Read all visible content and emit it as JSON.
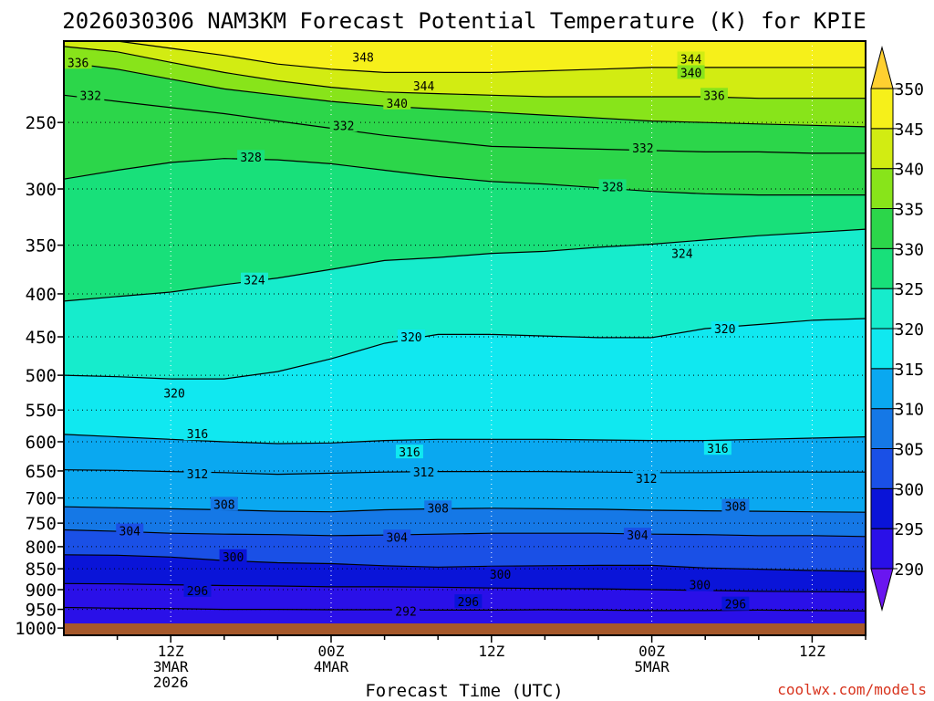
{
  "chart_data": {
    "type": "heatmap",
    "subtype": "filled time-height cross-section with contour lines",
    "title": "2026030306 NAM3KM Forecast Potential Temperature (K) for KPIE",
    "xlabel": "Forecast Time (UTC)",
    "ylabel": "",
    "credit": "coolwx.com/models",
    "units": "K",
    "x_range_hours": [
      0,
      45
    ],
    "x_ticks": [
      {
        "hour": 6,
        "label": "12Z",
        "label2": "3MAR",
        "label3": "2026"
      },
      {
        "hour": 15,
        "label": "00Z",
        "label2": "4MAR",
        "label3": ""
      },
      {
        "hour": 24,
        "label": "12Z",
        "label2": "",
        "label3": ""
      },
      {
        "hour": 33,
        "label": "00Z",
        "label2": "5MAR",
        "label3": ""
      },
      {
        "hour": 42,
        "label": "12Z",
        "label2": "",
        "label3": ""
      }
    ],
    "y_axis": {
      "scale": "log-pressure",
      "units": "hPa",
      "range": [
        1020,
        200
      ],
      "ticks": [
        1000,
        950,
        900,
        850,
        800,
        750,
        700,
        650,
        600,
        550,
        500,
        450,
        400,
        350,
        300,
        250
      ]
    },
    "colorbar": {
      "levels": [
        290,
        295,
        300,
        305,
        310,
        315,
        320,
        325,
        330,
        335,
        340,
        345,
        350
      ],
      "colors": [
        "#6a16f0",
        "#2a10e8",
        "#0a14d8",
        "#1a50e6",
        "#1578e6",
        "#0aa8f0",
        "#10e8f0",
        "#16eccc",
        "#18e07a",
        "#2cd64a",
        "#88e41a",
        "#d2ec12",
        "#f6f01a",
        "#ffd030"
      ]
    },
    "contour_interval": 4,
    "contours": [
      {
        "level": 292,
        "label": "292",
        "p": [
          945,
          947,
          948,
          950,
          950,
          951,
          951,
          952,
          952,
          951,
          952,
          953,
          953,
          952,
          953,
          954
        ]
      },
      {
        "level": 296,
        "label": "296",
        "p": [
          885,
          886,
          888,
          890,
          891,
          893,
          893,
          894,
          896,
          897,
          898,
          900,
          902,
          904,
          905,
          906
        ]
      },
      {
        "level": 300,
        "label": "300",
        "p": [
          818,
          819,
          823,
          831,
          836,
          838,
          843,
          846,
          844,
          843,
          842,
          842,
          848,
          851,
          854,
          856
        ]
      },
      {
        "level": 304,
        "label": "304",
        "p": [
          764,
          767,
          771,
          773,
          774,
          776,
          775,
          773,
          771,
          771,
          771,
          773,
          774,
          776,
          776,
          778
        ]
      },
      {
        "level": 308,
        "label": "308",
        "p": [
          717,
          719,
          721,
          723,
          726,
          727,
          723,
          721,
          720,
          721,
          722,
          724,
          725,
          726,
          727,
          728
        ]
      },
      {
        "level": 312,
        "label": "312",
        "p": [
          648,
          649,
          651,
          653,
          656,
          654,
          652,
          651,
          651,
          651,
          652,
          653,
          653,
          652,
          652,
          652
        ]
      },
      {
        "level": 316,
        "label": "316",
        "p": [
          588,
          592,
          596,
          600,
          603,
          602,
          598,
          596,
          596,
          596,
          597,
          598,
          598,
          596,
          594,
          592
        ]
      },
      {
        "level": 320,
        "label": "320",
        "p": [
          500,
          502,
          505,
          505,
          495,
          478,
          458,
          447,
          447,
          449,
          451,
          451,
          440,
          435,
          430,
          428
        ]
      },
      {
        "level": 324,
        "label": "324",
        "p": [
          408,
          403,
          398,
          390,
          383,
          374,
          365,
          362,
          358,
          356,
          352,
          349,
          345,
          341,
          338,
          335
        ]
      },
      {
        "level": 328,
        "label": "328",
        "p": [
          292,
          285,
          279,
          276,
          277,
          280,
          285,
          290,
          294,
          296,
          299,
          302,
          304,
          305,
          305,
          305
        ]
      },
      {
        "level": 332,
        "label": "332",
        "p": [
          232,
          236,
          240,
          244,
          249,
          254,
          259,
          263,
          267,
          268,
          269,
          270,
          271,
          271,
          272,
          272
        ]
      },
      {
        "level": 336,
        "label": "336",
        "p": [
          212,
          216,
          222,
          228,
          232,
          236,
          239,
          241,
          243,
          245,
          247,
          249,
          250,
          251,
          252,
          253
        ]
      },
      {
        "level": 340,
        "label": "340",
        "p": [
          203,
          206,
          212,
          218,
          223,
          227,
          230,
          231,
          232,
          233,
          233,
          233,
          233,
          234,
          234,
          234
        ]
      },
      {
        "level": 344,
        "label": "344",
        "p": [
          198,
          200,
          204,
          208,
          213,
          216,
          218,
          218,
          218,
          217,
          216,
          215,
          215,
          215,
          215,
          215
        ]
      }
    ],
    "contour_labels": [
      {
        "level": 336,
        "text": "336",
        "hour": 0.8,
        "p": 212
      },
      {
        "level": 348,
        "text": "348",
        "hour": 16.8,
        "p": 209
      },
      {
        "level": 344,
        "text": "344",
        "hour": 35.2,
        "p": 210
      },
      {
        "level": 340,
        "text": "340",
        "hour": 35.2,
        "p": 218
      },
      {
        "level": 344,
        "text": "344",
        "hour": 20.2,
        "p": 226
      },
      {
        "level": 332,
        "text": "332",
        "hour": 1.5,
        "p": 232
      },
      {
        "level": 336,
        "text": "336",
        "hour": 36.5,
        "p": 232
      },
      {
        "level": 340,
        "text": "340",
        "hour": 18.7,
        "p": 237
      },
      {
        "level": 332,
        "text": "332",
        "hour": 15.7,
        "p": 252
      },
      {
        "level": 332,
        "text": "332",
        "hour": 32.5,
        "p": 268
      },
      {
        "level": 328,
        "text": "328",
        "hour": 10.5,
        "p": 275
      },
      {
        "level": 328,
        "text": "328",
        "hour": 30.8,
        "p": 298
      },
      {
        "level": 324,
        "text": "324",
        "hour": 34.7,
        "p": 358
      },
      {
        "level": 324,
        "text": "324",
        "hour": 10.7,
        "p": 385
      },
      {
        "level": 320,
        "text": "320",
        "hour": 19.5,
        "p": 450
      },
      {
        "level": 320,
        "text": "320",
        "hour": 37.1,
        "p": 440
      },
      {
        "level": 320,
        "text": "320",
        "hour": 6.2,
        "p": 525
      },
      {
        "level": 316,
        "text": "316",
        "hour": 7.5,
        "p": 587
      },
      {
        "level": 316,
        "text": "316",
        "hour": 19.4,
        "p": 617
      },
      {
        "level": 316,
        "text": "316",
        "hour": 36.7,
        "p": 611
      },
      {
        "level": 312,
        "text": "312",
        "hour": 7.5,
        "p": 655
      },
      {
        "level": 312,
        "text": "312",
        "hour": 20.2,
        "p": 652
      },
      {
        "level": 312,
        "text": "312",
        "hour": 32.7,
        "p": 663
      },
      {
        "level": 308,
        "text": "308",
        "hour": 9.0,
        "p": 712
      },
      {
        "level": 308,
        "text": "308",
        "hour": 21.0,
        "p": 719
      },
      {
        "level": 308,
        "text": "308",
        "hour": 37.7,
        "p": 716
      },
      {
        "level": 304,
        "text": "304",
        "hour": 3.7,
        "p": 766
      },
      {
        "level": 304,
        "text": "304",
        "hour": 18.7,
        "p": 779
      },
      {
        "level": 304,
        "text": "304",
        "hour": 32.2,
        "p": 775
      },
      {
        "level": 300,
        "text": "300",
        "hour": 9.5,
        "p": 822
      },
      {
        "level": 300,
        "text": "300",
        "hour": 24.5,
        "p": 862
      },
      {
        "level": 300,
        "text": "300",
        "hour": 35.7,
        "p": 888
      },
      {
        "level": 296,
        "text": "296",
        "hour": 7.5,
        "p": 902
      },
      {
        "level": 296,
        "text": "296",
        "hour": 22.7,
        "p": 930
      },
      {
        "level": 296,
        "text": "296",
        "hour": 37.7,
        "p": 936
      },
      {
        "level": 292,
        "text": "292",
        "hour": 19.2,
        "p": 955
      }
    ]
  }
}
